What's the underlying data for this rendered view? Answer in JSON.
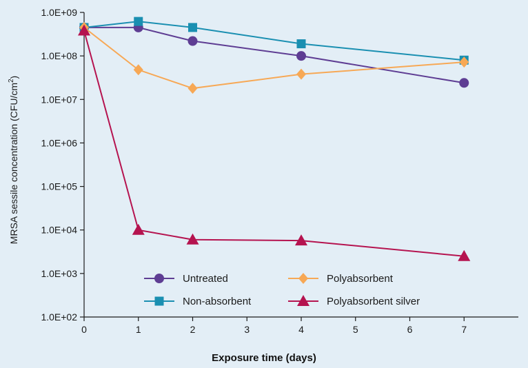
{
  "chart_data": {
    "type": "line",
    "title": "",
    "xlabel": "Exposure time (days)",
    "ylabel": "MRSA sessile concentration (CFU/cm",
    "ylabel_sup": "2",
    "ylabel_end": ")",
    "xlim": [
      0,
      8
    ],
    "x_ticks": [
      0,
      1,
      2,
      3,
      4,
      5,
      6,
      7
    ],
    "x_tick_labels": [
      "0",
      "1",
      "2",
      "3",
      "4",
      "5",
      "6",
      "7"
    ],
    "ylim": [
      100,
      1000000000
    ],
    "y_scale": "log",
    "y_ticks": [
      100,
      1000,
      10000,
      100000,
      1000000,
      10000000,
      100000000,
      1000000000
    ],
    "y_tick_labels": [
      "1.0E+02",
      "1.0E+03",
      "1.0E+04",
      "1.0E+05",
      "1.0E+06",
      "1.0E+07",
      "1.0E+08",
      "1.0E+09"
    ],
    "grid": false,
    "legend_position": "bottom-center",
    "series": [
      {
        "name": "Untreated",
        "color": "#5e3d93",
        "marker": "circle",
        "x": [
          0,
          1,
          2,
          4,
          7
        ],
        "y": [
          450000000,
          450000000,
          220000000,
          100000000,
          24000000
        ]
      },
      {
        "name": "Non-absorbent",
        "color": "#1a8fb1",
        "marker": "square",
        "x": [
          0,
          1,
          2,
          4,
          7
        ],
        "y": [
          450000000,
          620000000,
          450000000,
          190000000,
          80000000
        ]
      },
      {
        "name": "Polyabsorbent",
        "color": "#f7a855",
        "marker": "diamond",
        "x": [
          0,
          1,
          2,
          4,
          7
        ],
        "y": [
          450000000,
          48000000,
          18000000,
          38000000,
          72000000
        ]
      },
      {
        "name": "Polyabsorbent silver",
        "color": "#b5134f",
        "marker": "triangle",
        "x": [
          0,
          1,
          2,
          4,
          7
        ],
        "y": [
          380000000,
          10000,
          6000,
          5700,
          2500
        ]
      }
    ]
  }
}
